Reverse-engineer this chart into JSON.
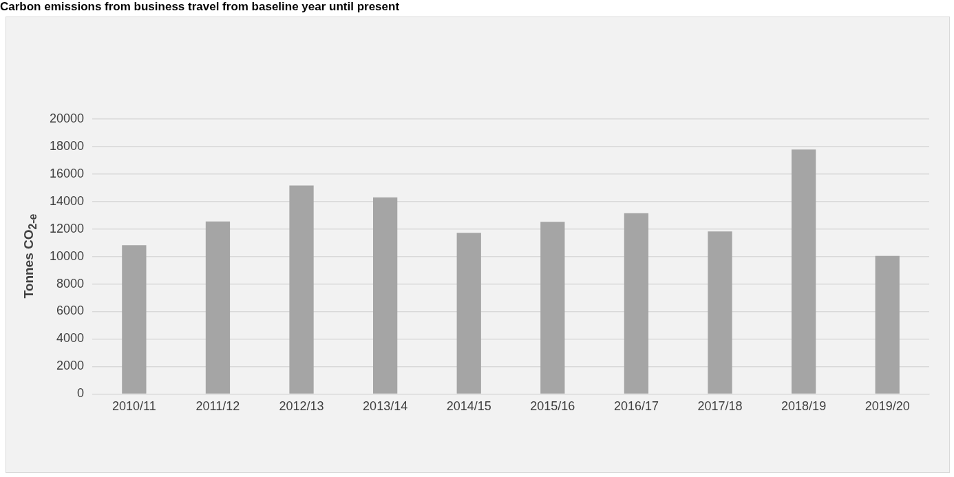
{
  "chart_data": {
    "type": "bar",
    "title": "Carbon emissions from business travel from baseline year until present",
    "ylabel": "Tonnes CO$_{2-e}$",
    "categories": [
      "2010/11",
      "2011/12",
      "2012/13",
      "2013/14",
      "2014/15",
      "2015/16",
      "2016/17",
      "2017/18",
      "2018/19",
      "2019/20"
    ],
    "values": [
      10820,
      12540,
      15160,
      14300,
      11720,
      12520,
      13140,
      11820,
      17780,
      10040
    ],
    "color": "#a5a5a5",
    "ylim": [
      0,
      20000
    ],
    "yticks": [
      0,
      2000,
      4000,
      6000,
      8000,
      10000,
      12000,
      14000,
      16000,
      18000,
      20000
    ],
    "grid": "y",
    "legend": false
  }
}
